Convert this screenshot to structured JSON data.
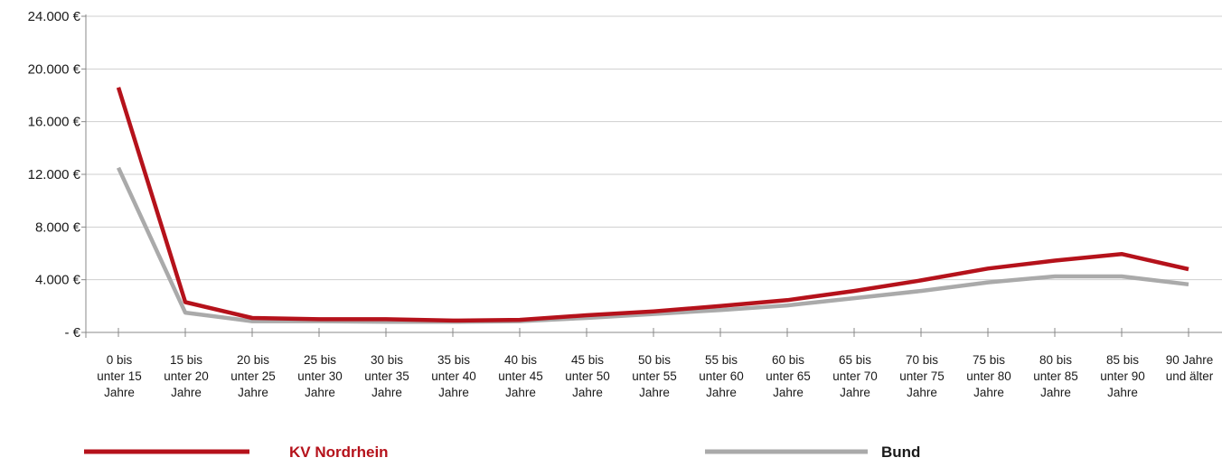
{
  "chart_data": {
    "type": "line",
    "title": "",
    "xlabel": "",
    "ylabel": "",
    "ylim": [
      0,
      24000
    ],
    "yticks": [
      {
        "value": 0,
        "label": "- €"
      },
      {
        "value": 4000,
        "label": "4.000 €"
      },
      {
        "value": 8000,
        "label": "8.000 €"
      },
      {
        "value": 12000,
        "label": "12.000 €"
      },
      {
        "value": 16000,
        "label": "16.000 €"
      },
      {
        "value": 20000,
        "label": "20.000 €"
      },
      {
        "value": 24000,
        "label": "24.000 €"
      }
    ],
    "categories": [
      [
        "0 bis",
        "unter 15",
        "Jahre"
      ],
      [
        "15 bis",
        "unter 20",
        "Jahre"
      ],
      [
        "20 bis",
        "unter 25",
        "Jahre"
      ],
      [
        "25 bis",
        "unter 30",
        "Jahre"
      ],
      [
        "30 bis",
        "unter 35",
        "Jahre"
      ],
      [
        "35 bis",
        "unter 40",
        "Jahre"
      ],
      [
        "40 bis",
        "unter 45",
        "Jahre"
      ],
      [
        "45 bis",
        "unter 50",
        "Jahre"
      ],
      [
        "50 bis",
        "unter 55",
        "Jahre"
      ],
      [
        "55 bis",
        "unter 60",
        "Jahre"
      ],
      [
        "60 bis",
        "unter 65",
        "Jahre"
      ],
      [
        "65 bis",
        "unter 70",
        "Jahre"
      ],
      [
        "70 bis",
        "unter 75",
        "Jahre"
      ],
      [
        "75 bis",
        "unter 80",
        "Jahre"
      ],
      [
        "80 bis",
        "unter 85",
        "Jahre"
      ],
      [
        "85 bis",
        "unter 90",
        "Jahre"
      ],
      [
        "90 Jahre",
        "und älter"
      ]
    ],
    "series": [
      {
        "name": "KV Nordrhein",
        "color": "#b5121b",
        "values": [
          18600,
          2300,
          1100,
          1000,
          1000,
          900,
          950,
          1300,
          1600,
          2000,
          2450,
          3150,
          3950,
          4850,
          5450,
          5950,
          4800
        ]
      },
      {
        "name": "Bund",
        "color": "#aaaaaa",
        "values": [
          12500,
          1500,
          850,
          850,
          800,
          800,
          850,
          1100,
          1400,
          1700,
          2050,
          2600,
          3150,
          3800,
          4250,
          4250,
          3650
        ]
      }
    ],
    "grid": true,
    "legend_position": "bottom"
  }
}
